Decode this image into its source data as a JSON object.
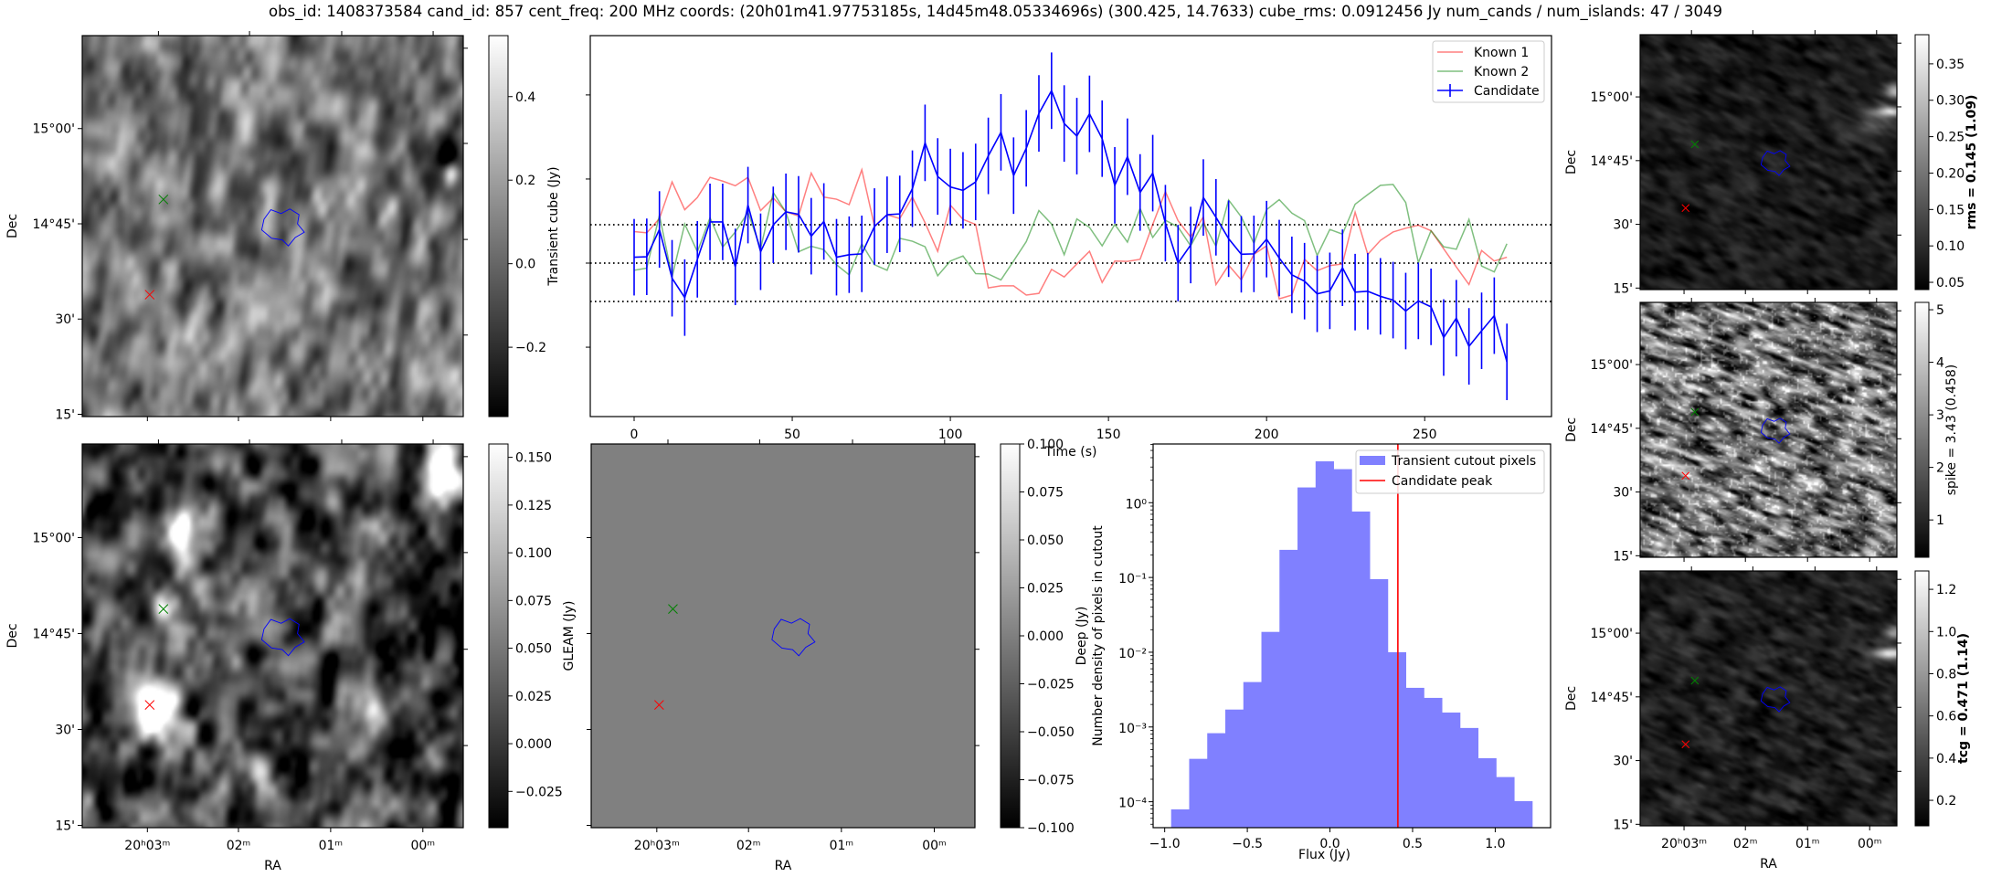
{
  "title": "obs_id: 1408373584 cand_id: 857 cent_freq: 200 MHz coords: (20h01m41.97753185s, 14d45m48.05334696s) (300.425, 14.7633) cube_rms: 0.0912456 Jy num_cands / num_islands: 47 / 3049",
  "colors": {
    "known1": "#ff0000",
    "known2": "#008000",
    "candidate": "#0000ff",
    "hist_fill": "#8080ff",
    "peak_line": "#ff0000"
  },
  "images": [
    {
      "id": "tl",
      "name": "transient-cube-image",
      "ylabel": "Dec",
      "xlabel": "",
      "dec_ticks": [
        "15°00'",
        "14°45'",
        "30'",
        "15'"
      ],
      "ra_ticks": [],
      "colorbar": {
        "label": "Transient cube (Jy)",
        "bold": false,
        "range": [
          -0.366,
          0.546
        ],
        "ticks": [
          {
            "v": 0.4,
            "label": "0.4"
          },
          {
            "v": 0.2,
            "label": "0.2"
          },
          {
            "v": 0.0,
            "label": "0.0"
          },
          {
            "v": -0.2,
            "label": "−0.2"
          }
        ]
      }
    },
    {
      "id": "bl",
      "name": "deep-image",
      "ylabel": "Dec",
      "xlabel": "RA",
      "dec_ticks": [
        "15°00'",
        "14°45'",
        "30'",
        "15'"
      ],
      "ra_ticks": [
        "20ʰ03ᵐ",
        "02ᵐ",
        "01ᵐ",
        "00ᵐ"
      ],
      "colorbar": {
        "label": "Deep (Jy)",
        "bold": false,
        "range": [
          -0.044,
          0.157
        ],
        "ticks": [
          {
            "v": 0.15,
            "label": "0.150"
          },
          {
            "v": 0.125,
            "label": "0.125"
          },
          {
            "v": 0.1,
            "label": "0.100"
          },
          {
            "v": 0.075,
            "label": "0.075"
          },
          {
            "v": 0.05,
            "label": "0.050"
          },
          {
            "v": 0.025,
            "label": "0.025"
          },
          {
            "v": 0.0,
            "label": "0.000"
          },
          {
            "v": -0.025,
            "label": "−0.025"
          }
        ]
      }
    },
    {
      "id": "gl",
      "name": "gleam-image",
      "ylabel": "GLEAM (Jy)",
      "xlabel": "RA",
      "dec_ticks": [],
      "ra_ticks": [
        "20ʰ03ᵐ",
        "02ᵐ",
        "01ᵐ",
        "00ᵐ"
      ],
      "colorbar": {
        "label": "",
        "bold": false,
        "range": [
          -0.1,
          0.1
        ],
        "ticks": [
          {
            "v": 0.1,
            "label": "0.100"
          },
          {
            "v": 0.075,
            "label": "0.075"
          },
          {
            "v": 0.05,
            "label": "0.050"
          },
          {
            "v": 0.025,
            "label": "0.025"
          },
          {
            "v": 0.0,
            "label": "0.000"
          },
          {
            "v": -0.025,
            "label": "−0.025"
          },
          {
            "v": -0.05,
            "label": "−0.050"
          },
          {
            "v": -0.075,
            "label": "−0.075"
          },
          {
            "v": -0.1,
            "label": "−0.100"
          }
        ]
      }
    },
    {
      "id": "r1",
      "name": "rms-image",
      "ylabel": "Dec",
      "xlabel": "",
      "dec_ticks": [
        "15°00'",
        "14°45'",
        "30'",
        "15'"
      ],
      "ra_ticks": [],
      "colorbar": {
        "label": "rms = 0.145 (1.09)",
        "bold": true,
        "range": [
          0.04,
          0.39
        ],
        "ticks": [
          {
            "v": 0.35,
            "label": "0.35"
          },
          {
            "v": 0.3,
            "label": "0.30"
          },
          {
            "v": 0.25,
            "label": "0.25"
          },
          {
            "v": 0.2,
            "label": "0.20"
          },
          {
            "v": 0.15,
            "label": "0.15"
          },
          {
            "v": 0.1,
            "label": "0.10"
          },
          {
            "v": 0.05,
            "label": "0.05"
          }
        ]
      }
    },
    {
      "id": "r2",
      "name": "spike-image",
      "ylabel": "Dec",
      "xlabel": "",
      "dec_ticks": [
        "15°00'",
        "14°45'",
        "30'",
        "15'"
      ],
      "ra_ticks": [],
      "colorbar": {
        "label": "spike = 3.43 (0.458)",
        "bold": false,
        "range": [
          0.29,
          5.14
        ],
        "ticks": [
          {
            "v": 5,
            "label": "5"
          },
          {
            "v": 4,
            "label": "4"
          },
          {
            "v": 3,
            "label": "3"
          },
          {
            "v": 2,
            "label": "2"
          },
          {
            "v": 1,
            "label": "1"
          }
        ]
      }
    },
    {
      "id": "r3",
      "name": "tcg-image",
      "ylabel": "Dec",
      "xlabel": "RA",
      "dec_ticks": [
        "15°00'",
        "14°45'",
        "30'",
        "15'"
      ],
      "ra_ticks": [
        "20ʰ03ᵐ",
        "02ᵐ",
        "01ᵐ",
        "00ᵐ"
      ],
      "colorbar": {
        "label": "tcg = 0.471 (1.14)",
        "bold": true,
        "range": [
          0.079,
          1.287
        ],
        "ticks": [
          {
            "v": 1.2,
            "label": "1.2"
          },
          {
            "v": 1.0,
            "label": "1.0"
          },
          {
            "v": 0.8,
            "label": "0.8"
          },
          {
            "v": 0.6,
            "label": "0.6"
          },
          {
            "v": 0.4,
            "label": "0.4"
          },
          {
            "v": 0.2,
            "label": "0.2"
          }
        ]
      }
    }
  ],
  "chart_data": [
    {
      "type": "line",
      "title": "",
      "xlabel": "Time (s)",
      "ylabel": "",
      "xlim": [
        -13.87,
        290.1
      ],
      "ylim": [
        -0.365,
        0.541
      ],
      "x_ticks": [
        0,
        50,
        100,
        150,
        200,
        250
      ],
      "x_tick_labels": [
        "0",
        "50",
        "100",
        "150",
        "200",
        "250"
      ],
      "y_ticks": [
        0.4,
        0.2,
        0.0,
        -0.2
      ],
      "x_start": 0,
      "x_step": 4,
      "hlines": [
        0.0912456,
        0.0,
        -0.0912456
      ],
      "legend": {
        "placement": "top-right",
        "entries": [
          "Known 1",
          "Known 2",
          "Candidate"
        ]
      },
      "series": [
        {
          "name": "Known 1",
          "values": [
            0.075,
            0.072,
            0.106,
            0.193,
            0.127,
            0.156,
            0.204,
            0.195,
            0.184,
            0.204,
            0.125,
            0.155,
            0.122,
            0.112,
            0.214,
            0.157,
            0.152,
            0.139,
            0.222,
            0.088,
            0.115,
            0.106,
            0.157,
            0.096,
            0.028,
            0.138,
            0.104,
            0.092,
            -0.059,
            -0.054,
            -0.054,
            -0.076,
            -0.072,
            -0.015,
            -0.033,
            -0.002,
            0.028,
            -0.046,
            0.005,
            0.004,
            0.009,
            0.092,
            0.17,
            0.101,
            0.062,
            0.11,
            -0.051,
            -0.005,
            -0.04,
            0.021,
            0.041,
            -0.085,
            -0.076,
            0.009,
            -0.018,
            -0.006,
            -0.002,
            0.121,
            0.021,
            0.054,
            0.074,
            0.083,
            0.09,
            0.077,
            0.034,
            -0.009,
            -0.051,
            0.03,
            0.005,
            0.014
          ]
        },
        {
          "name": "Known 2",
          "values": [
            -0.017,
            -0.012,
            0.114,
            -0.033,
            0.093,
            0.027,
            0.108,
            0.038,
            0.074,
            0.121,
            0.034,
            0.168,
            0.121,
            0.027,
            0.04,
            0.032,
            -0.004,
            -0.028,
            0.046,
            -0.004,
            -0.017,
            0.059,
            0.052,
            0.039,
            -0.03,
            0.005,
            0.017,
            -0.025,
            -0.026,
            -0.04,
            0.005,
            0.051,
            0.125,
            0.093,
            0.02,
            0.105,
            0.085,
            0.041,
            0.092,
            0.05,
            0.13,
            0.061,
            0.102,
            0.086,
            0.041,
            0.096,
            0.04,
            0.15,
            0.11,
            0.047,
            0.127,
            0.151,
            0.119,
            0.101,
            0.018,
            0.08,
            0.069,
            0.14,
            0.163,
            0.185,
            0.187,
            0.144,
            0.001,
            0.077,
            0.039,
            0.033,
            0.104,
            -0.007,
            -0.021,
            0.046
          ]
        },
        {
          "name": "Candidate",
          "error": 0.091,
          "values": [
            0.014,
            0.015,
            0.08,
            -0.036,
            -0.082,
            0.009,
            0.098,
            0.098,
            -0.009,
            0.138,
            0.027,
            0.091,
            0.122,
            0.116,
            0.064,
            0.099,
            0.014,
            0.02,
            0.022,
            0.087,
            0.115,
            0.117,
            0.177,
            0.286,
            0.206,
            0.181,
            0.173,
            0.193,
            0.255,
            0.311,
            0.208,
            0.273,
            0.356,
            0.41,
            0.332,
            0.302,
            0.355,
            0.296,
            0.185,
            0.253,
            0.168,
            0.214,
            0.095,
            0.0,
            0.043,
            0.156,
            0.109,
            0.058,
            0.021,
            0.022,
            0.057,
            0.012,
            -0.028,
            -0.043,
            -0.073,
            -0.066,
            -0.011,
            -0.069,
            -0.067,
            -0.079,
            -0.088,
            -0.114,
            -0.09,
            -0.104,
            -0.177,
            -0.131,
            -0.198,
            -0.161,
            -0.125,
            -0.235
          ]
        }
      ]
    },
    {
      "type": "bar",
      "title": "",
      "xlabel": "Flux (Jy)",
      "ylabel": "Number density of pixels in cutout",
      "yscale": "log",
      "xlim": [
        -1.07,
        1.335
      ],
      "ylim": [
        4.5e-05,
        6.1
      ],
      "x_ticks": [
        -1.0,
        -0.5,
        0.0,
        0.5,
        1.0
      ],
      "x_tick_labels": [
        "−1.0",
        "−0.5",
        "0.0",
        "0.5",
        "1.0"
      ],
      "y_ticks": [
        1,
        0.1,
        0.01,
        0.001,
        0.0001
      ],
      "y_tick_labels": [
        "10⁰",
        "10⁻¹",
        "10⁻²",
        "10⁻³",
        "10⁻⁴"
      ],
      "bin_start": -0.961,
      "bin_width": 0.10925,
      "values": [
        7.9e-05,
        0.000375,
        0.000826,
        0.00171,
        0.00399,
        0.0187,
        0.234,
        1.6,
        3.58,
        2.81,
        0.762,
        0.095,
        0.01,
        0.00334,
        0.00245,
        0.00156,
        0.00097,
        0.000382,
        0.000214,
        0.000102
      ],
      "candidate_peak": 0.411,
      "legend": {
        "placement": "top-right",
        "entries": [
          "Transient cutout pixels",
          "Candidate peak"
        ]
      }
    }
  ]
}
